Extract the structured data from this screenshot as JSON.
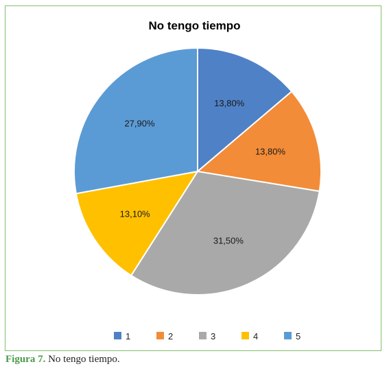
{
  "chart_data": {
    "type": "pie",
    "title": "No tengo tiempo",
    "categories": [
      "1",
      "2",
      "3",
      "4",
      "5"
    ],
    "values": [
      13.8,
      13.8,
      31.5,
      13.1,
      27.9
    ],
    "value_labels": [
      "13,80%",
      "13,80%",
      "31,50%",
      "13,10%",
      "27,90%"
    ],
    "colors": [
      "#4f81c6",
      "#f28c38",
      "#a9a9a9",
      "#ffc000",
      "#5b9bd5"
    ],
    "legend_position": "bottom",
    "start_angle": "12 o'clock",
    "direction": "clockwise"
  },
  "caption": {
    "label": "Figura 7.",
    "text": " No tengo tiempo."
  }
}
